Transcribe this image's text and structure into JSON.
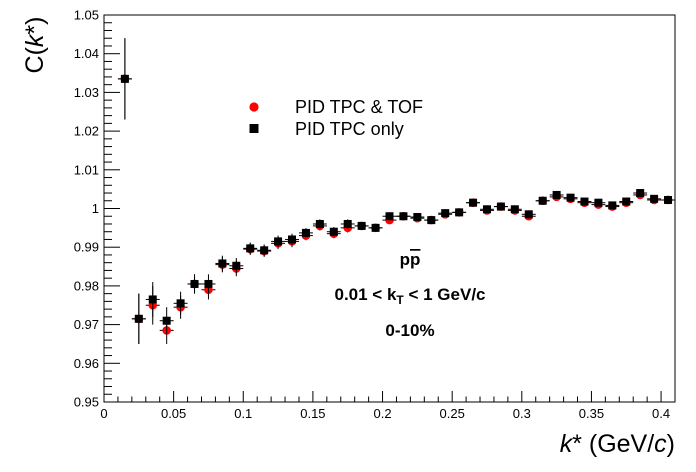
{
  "chart_data": {
    "type": "scatter",
    "title": "",
    "xlabel": "k* (GeV/c)",
    "ylabel": "C(k*)",
    "xlim": [
      0,
      0.41
    ],
    "ylim": [
      0.95,
      1.05
    ],
    "x_ticks": [
      0,
      0.05,
      0.1,
      0.15,
      0.2,
      0.25,
      0.3,
      0.35,
      0.4
    ],
    "x_tick_labels": [
      "0",
      "0.05",
      "0.1",
      "0.15",
      "0.2",
      "0.25",
      "0.3",
      "0.35",
      "0.4"
    ],
    "y_ticks": [
      0.95,
      0.96,
      0.97,
      0.98,
      0.99,
      1.0,
      1.01,
      1.02,
      1.03,
      1.04,
      1.05
    ],
    "y_tick_labels": [
      "0.95",
      "0.96",
      "0.97",
      "0.98",
      "0.99",
      "1",
      "1.01",
      "1.02",
      "1.03",
      "1.04",
      "1.05"
    ],
    "grid": false,
    "legend_position": "top-center",
    "annotations": [
      "pp̅",
      "0.01 < k_T < 1 GeV/c",
      "0-10%"
    ],
    "x": [
      0.015,
      0.025,
      0.035,
      0.045,
      0.055,
      0.065,
      0.075,
      0.085,
      0.095,
      0.105,
      0.115,
      0.125,
      0.135,
      0.145,
      0.155,
      0.165,
      0.175,
      0.185,
      0.195,
      0.205,
      0.215,
      0.225,
      0.235,
      0.245,
      0.255,
      0.265,
      0.275,
      0.285,
      0.295,
      0.305,
      0.315,
      0.325,
      0.335,
      0.345,
      0.355,
      0.365,
      0.375,
      0.385,
      0.395,
      0.405
    ],
    "series": [
      {
        "name": "PID TPC & TOF",
        "color": "#ff0000",
        "marker": "circle",
        "values": [
          1.0335,
          0.9715,
          0.975,
          0.9685,
          0.9745,
          0.9805,
          0.979,
          0.9855,
          0.9845,
          0.9895,
          0.989,
          0.991,
          0.9915,
          0.993,
          0.9955,
          0.9935,
          0.995,
          0.9955,
          0.995,
          0.997,
          0.998,
          0.9975,
          0.997,
          0.9985,
          0.999,
          1.0015,
          0.9995,
          1.0005,
          0.9995,
          0.998,
          1.002,
          1.003,
          1.0025,
          1.0015,
          1.001,
          1.0005,
          1.0015,
          1.0035,
          1.0022,
          1.0022
        ],
        "errors": [
          0.0105,
          0.0065,
          0.005,
          0.0035,
          0.003,
          0.0025,
          0.0025,
          0.002,
          0.002,
          0.0015,
          0.0015,
          0.0015,
          0.0015,
          0.0012,
          0.0012,
          0.0012,
          0.0012,
          0.001,
          0.001,
          0.001,
          0.001,
          0.001,
          0.001,
          0.001,
          0.001,
          0.001,
          0.001,
          0.001,
          0.001,
          0.001,
          0.001,
          0.001,
          0.001,
          0.001,
          0.001,
          0.001,
          0.001,
          0.001,
          0.001,
          0.001
        ]
      },
      {
        "name": "PID TPC only",
        "color": "#000000",
        "marker": "square",
        "values": [
          1.0335,
          0.9715,
          0.9765,
          0.971,
          0.9755,
          0.9805,
          0.9805,
          0.9858,
          0.9852,
          0.9897,
          0.9892,
          0.9915,
          0.992,
          0.9937,
          0.996,
          0.994,
          0.996,
          0.9955,
          0.995,
          0.998,
          0.998,
          0.9978,
          0.997,
          0.9988,
          0.999,
          1.0015,
          0.9998,
          1.0005,
          0.9998,
          0.9985,
          1.002,
          1.0035,
          1.0028,
          1.0018,
          1.0015,
          1.0008,
          1.0018,
          1.004,
          1.0025,
          1.0022
        ],
        "errors": [
          0.0105,
          0.0065,
          0.0045,
          0.0035,
          0.003,
          0.0025,
          0.0025,
          0.002,
          0.002,
          0.0015,
          0.0015,
          0.0015,
          0.0015,
          0.0012,
          0.0012,
          0.0012,
          0.0012,
          0.001,
          0.001,
          0.001,
          0.001,
          0.001,
          0.001,
          0.001,
          0.001,
          0.001,
          0.001,
          0.001,
          0.001,
          0.001,
          0.001,
          0.001,
          0.001,
          0.001,
          0.001,
          0.001,
          0.001,
          0.001,
          0.001,
          0.001
        ]
      }
    ]
  }
}
